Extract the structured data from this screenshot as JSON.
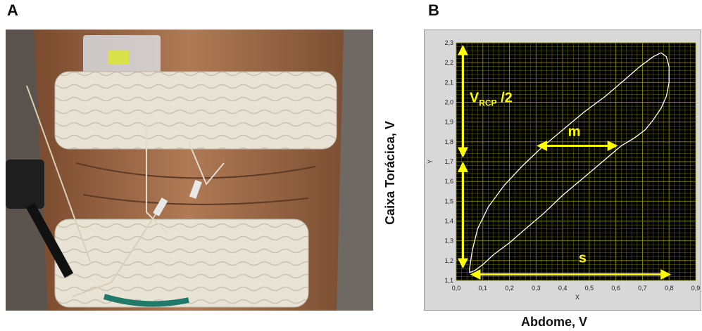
{
  "panels": {
    "a_label": "A",
    "b_label": "B"
  },
  "photo": {
    "description_icon": "torso-with-chest-and-abdominal-belts-photo"
  },
  "chart_data": {
    "type": "line",
    "xlabel_outer": "Abdome, V",
    "ylabel_outer": "Caixa Torácica, V",
    "xlabel_inner": "X",
    "ylabel_inner": "Y",
    "xlim": [
      0.0,
      0.9
    ],
    "ylim": [
      1.1,
      2.3
    ],
    "x_ticks": [
      "0,0",
      "0,1",
      "0,2",
      "0,3",
      "0,4",
      "0,5",
      "0,6",
      "0,7",
      "0,8",
      "0,9"
    ],
    "y_ticks": [
      "1,1",
      "1,2",
      "1,3",
      "1,4",
      "1,5",
      "1,6",
      "1,7",
      "1,8",
      "1,9",
      "2,0",
      "2,1",
      "2,2",
      "2,3"
    ],
    "grid": true,
    "background_color": "#000000",
    "grid_color": "#8a8a00",
    "loop_color": "#ffffff",
    "annotation_color": "#ffff00",
    "series": [
      {
        "x": [
          0.05,
          0.06,
          0.08,
          0.12,
          0.18,
          0.25,
          0.32,
          0.4,
          0.48,
          0.56,
          0.63,
          0.69,
          0.74,
          0.77,
          0.79,
          0.8,
          0.8,
          0.79,
          0.77,
          0.74,
          0.71,
          0.67,
          0.62,
          0.55,
          0.48,
          0.4,
          0.33,
          0.26,
          0.2,
          0.14,
          0.1,
          0.07,
          0.05,
          0.05
        ],
        "y": [
          1.16,
          1.25,
          1.36,
          1.47,
          1.58,
          1.68,
          1.77,
          1.86,
          1.95,
          2.03,
          2.11,
          2.18,
          2.23,
          2.25,
          2.23,
          2.18,
          2.1,
          2.03,
          1.97,
          1.91,
          1.86,
          1.82,
          1.78,
          1.7,
          1.62,
          1.53,
          1.44,
          1.36,
          1.29,
          1.23,
          1.18,
          1.15,
          1.14,
          1.16
        ]
      }
    ],
    "annotations": [
      {
        "label": "V",
        "sub": "RCP",
        "suffix": " /2"
      },
      {
        "label": "m"
      },
      {
        "label": "s"
      }
    ]
  }
}
